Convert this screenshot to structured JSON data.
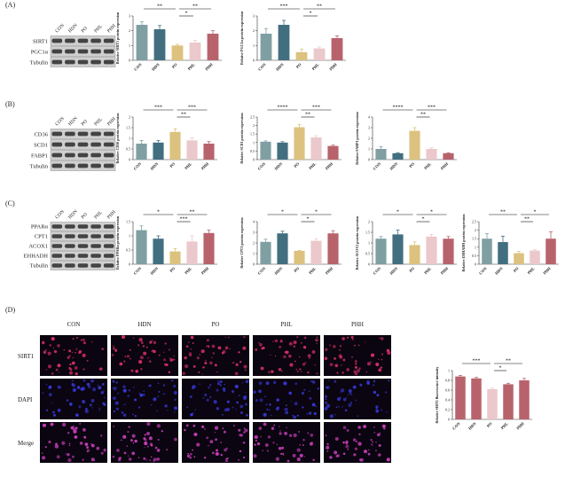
{
  "panels": [
    "(A)",
    "(B)",
    "(C)",
    "(D)"
  ],
  "blots": [
    {
      "lanes": [
        "CON",
        "HDN",
        "PO",
        "PHL",
        "PHH"
      ],
      "proteins": [
        "SIRT1",
        "PGC1α",
        "Tubulin"
      ]
    },
    {
      "lanes": [
        "CON",
        "HDN",
        "PO",
        "PHL",
        "PHH"
      ],
      "proteins": [
        "CD36",
        "SCD1",
        "FABP1",
        "Tubulin"
      ]
    },
    {
      "lanes": [
        "CON",
        "HDN",
        "PO",
        "PHL",
        "PHH"
      ],
      "proteins": [
        "PPARα",
        "CPT1",
        "ACOX1",
        "EHHADH",
        "Tubulin"
      ]
    }
  ],
  "images": {
    "columns": [
      "CON",
      "HDN",
      "PO",
      "PHL",
      "PHH"
    ],
    "rows": [
      "SIRT1",
      "DAPI",
      "Merge"
    ]
  },
  "chart_data": [
    {
      "type": "bar",
      "y_label": "Relative SIRT1 protein expression",
      "categories": [
        "CON",
        "HDN",
        "PO",
        "PHL",
        "PHH"
      ],
      "colors": [
        "#7f9fa3",
        "#426f80",
        "#dcc27e",
        "#ebc8cb",
        "#b8636c"
      ],
      "values": [
        2.4,
        2.1,
        1.0,
        1.2,
        1.8
      ],
      "errors": [
        0.2,
        0.25,
        0.08,
        0.15,
        0.2
      ],
      "ylim": [
        0,
        3
      ],
      "yticks": [
        0,
        1,
        2,
        3
      ],
      "significance": [
        {
          "label": "**",
          "between": [
            "CON",
            "PO"
          ]
        },
        {
          "label": "**",
          "between": [
            "PO",
            "PHH"
          ]
        },
        {
          "label": "*",
          "between": [
            "PO",
            "PHL"
          ]
        }
      ]
    },
    {
      "type": "bar",
      "y_label": "Relative PGC1α protein expression",
      "categories": [
        "CON",
        "HDN",
        "PO",
        "PHL",
        "PHH"
      ],
      "colors": [
        "#7f9fa3",
        "#426f80",
        "#dcc27e",
        "#ebc8cb",
        "#b8636c"
      ],
      "values": [
        1.8,
        2.4,
        0.55,
        0.8,
        1.5
      ],
      "errors": [
        0.35,
        0.3,
        0.2,
        0.1,
        0.15
      ],
      "ylim": [
        0,
        3
      ],
      "yticks": [
        0,
        1,
        2,
        3
      ],
      "significance": [
        {
          "label": "***",
          "between": [
            "CON",
            "PO"
          ]
        },
        {
          "label": "**",
          "between": [
            "PO",
            "PHH"
          ]
        },
        {
          "label": "*",
          "between": [
            "PO",
            "PHL"
          ]
        }
      ]
    },
    {
      "type": "bar",
      "y_label": "Relative CD36 protein expression",
      "categories": [
        "CON",
        "HDN",
        "PO",
        "PHL",
        "PHH"
      ],
      "colors": [
        "#7f9fa3",
        "#426f80",
        "#dcc27e",
        "#ebc8cb",
        "#b8636c"
      ],
      "values": [
        0.75,
        0.8,
        1.3,
        0.9,
        0.75
      ],
      "errors": [
        0.15,
        0.1,
        0.15,
        0.12,
        0.1
      ],
      "ylim": [
        0,
        2
      ],
      "yticks": [
        0,
        0.5,
        1,
        1.5,
        2
      ],
      "significance": [
        {
          "label": "***",
          "between": [
            "CON",
            "PO"
          ]
        },
        {
          "label": "***",
          "between": [
            "PO",
            "PHH"
          ]
        },
        {
          "label": "**",
          "between": [
            "PO",
            "PHL"
          ]
        }
      ]
    },
    {
      "type": "bar",
      "y_label": "Relative SCD1 protein expression",
      "categories": [
        "CON",
        "HDN",
        "PO",
        "PHL",
        "PHH"
      ],
      "colors": [
        "#7f9fa3",
        "#426f80",
        "#dcc27e",
        "#ebc8cb",
        "#b8636c"
      ],
      "values": [
        1.05,
        1.0,
        1.9,
        1.3,
        0.8
      ],
      "errors": [
        0.05,
        0.05,
        0.15,
        0.1,
        0.05
      ],
      "ylim": [
        0,
        2.5
      ],
      "yticks": [
        0,
        0.5,
        1,
        1.5,
        2,
        2.5
      ],
      "significance": [
        {
          "label": "****",
          "between": [
            "CON",
            "PO"
          ]
        },
        {
          "label": "***",
          "between": [
            "PO",
            "PHH"
          ]
        },
        {
          "label": "**",
          "between": [
            "PO",
            "PHL"
          ]
        }
      ]
    },
    {
      "type": "bar",
      "y_label": "Relative FABP1 protein expression",
      "categories": [
        "CON",
        "HDN",
        "PO",
        "PHL",
        "PHH"
      ],
      "colors": [
        "#7f9fa3",
        "#426f80",
        "#dcc27e",
        "#ebc8cb",
        "#b8636c"
      ],
      "values": [
        1.0,
        0.6,
        2.7,
        1.0,
        0.6
      ],
      "errors": [
        0.2,
        0.05,
        0.3,
        0.1,
        0.05
      ],
      "ylim": [
        0,
        4
      ],
      "yticks": [
        0,
        1,
        2,
        3,
        4
      ],
      "significance": [
        {
          "label": "****",
          "between": [
            "CON",
            "PO"
          ]
        },
        {
          "label": "***",
          "between": [
            "PO",
            "PHH"
          ]
        },
        {
          "label": "**",
          "between": [
            "PO",
            "PHL"
          ]
        }
      ]
    },
    {
      "type": "bar",
      "y_label": "Relative PPARα protein expression",
      "categories": [
        "CON",
        "HDN",
        "PO",
        "PHL",
        "PHH"
      ],
      "colors": [
        "#7f9fa3",
        "#426f80",
        "#dcc27e",
        "#ebc8cb",
        "#b8636c"
      ],
      "values": [
        1.2,
        0.9,
        0.45,
        0.8,
        1.1
      ],
      "errors": [
        0.15,
        0.1,
        0.1,
        0.2,
        0.1
      ],
      "ylim": [
        0,
        1.5
      ],
      "yticks": [
        0,
        0.5,
        1,
        1.5
      ],
      "significance": [
        {
          "label": "*",
          "between": [
            "CON",
            "PO"
          ]
        },
        {
          "label": "**",
          "between": [
            "PO",
            "PHH"
          ]
        },
        {
          "label": "***",
          "between": [
            "PO",
            "PHL"
          ]
        }
      ]
    },
    {
      "type": "bar",
      "y_label": "Relative CPT1 protein expression",
      "categories": [
        "CON",
        "HDN",
        "PO",
        "PHL",
        "PHH"
      ],
      "colors": [
        "#7f9fa3",
        "#426f80",
        "#dcc27e",
        "#ebc8cb",
        "#b8636c"
      ],
      "values": [
        2.1,
        2.9,
        1.25,
        2.2,
        2.9
      ],
      "errors": [
        0.25,
        0.2,
        0.05,
        0.2,
        0.25
      ],
      "ylim": [
        0,
        4
      ],
      "yticks": [
        0,
        1,
        2,
        3,
        4
      ],
      "significance": [
        {
          "label": "*",
          "between": [
            "CON",
            "PO"
          ]
        },
        {
          "label": "*",
          "between": [
            "PO",
            "PHH"
          ]
        },
        {
          "label": "*",
          "between": [
            "PO",
            "PHL"
          ]
        }
      ]
    },
    {
      "type": "bar",
      "y_label": "Relative ACOX1 protein expression",
      "categories": [
        "CON",
        "HDN",
        "PO",
        "PHL",
        "PHH"
      ],
      "colors": [
        "#7f9fa3",
        "#426f80",
        "#dcc27e",
        "#ebc8cb",
        "#b8636c"
      ],
      "values": [
        1.2,
        1.4,
        0.9,
        1.3,
        1.2
      ],
      "errors": [
        0.1,
        0.2,
        0.15,
        0.1,
        0.1
      ],
      "ylim": [
        0,
        2
      ],
      "yticks": [
        0,
        0.5,
        1,
        1.5,
        2
      ],
      "significance": [
        {
          "label": "*",
          "between": [
            "CON",
            "PO"
          ]
        },
        {
          "label": "*",
          "between": [
            "PO",
            "PHH"
          ]
        },
        {
          "label": "*",
          "between": [
            "PO",
            "PHL"
          ]
        }
      ]
    },
    {
      "type": "bar",
      "y_label": "Relative EHHADH protein expression",
      "categories": [
        "CON",
        "HDN",
        "PO",
        "PHL",
        "PHH"
      ],
      "colors": [
        "#7f9fa3",
        "#426f80",
        "#dcc27e",
        "#ebc8cb",
        "#b8636c"
      ],
      "values": [
        1.5,
        1.3,
        0.65,
        0.8,
        1.5
      ],
      "errors": [
        0.3,
        0.35,
        0.1,
        0.05,
        0.4
      ],
      "ylim": [
        0,
        2.5
      ],
      "yticks": [
        0,
        0.5,
        1,
        1.5,
        2,
        2.5
      ],
      "significance": [
        {
          "label": "**",
          "between": [
            "CON",
            "PO"
          ]
        },
        {
          "label": "*",
          "between": [
            "PO",
            "PHH"
          ]
        },
        {
          "label": "**",
          "between": [
            "PO",
            "PHL"
          ]
        }
      ]
    },
    {
      "type": "bar",
      "y_label": "Relative SIRT1 fluorescence intensity",
      "categories": [
        "CON",
        "HDN",
        "PO",
        "PHL",
        "PHH"
      ],
      "colors": [
        "#b8636c",
        "#b8636c",
        "#ebc8cb",
        "#b8636c",
        "#b8636c"
      ],
      "values": [
        0.88,
        0.84,
        0.62,
        0.72,
        0.8
      ],
      "errors": [
        0.02,
        0.02,
        0.02,
        0.02,
        0.04
      ],
      "ylim": [
        0,
        1
      ],
      "yticks": [
        0,
        0.2,
        0.4,
        0.6,
        0.8,
        1
      ],
      "significance": [
        {
          "label": "***",
          "between": [
            "CON",
            "PO"
          ]
        },
        {
          "label": "**",
          "between": [
            "PO",
            "PHH"
          ]
        },
        {
          "label": "*",
          "between": [
            "PO",
            "PHL"
          ]
        }
      ]
    }
  ]
}
